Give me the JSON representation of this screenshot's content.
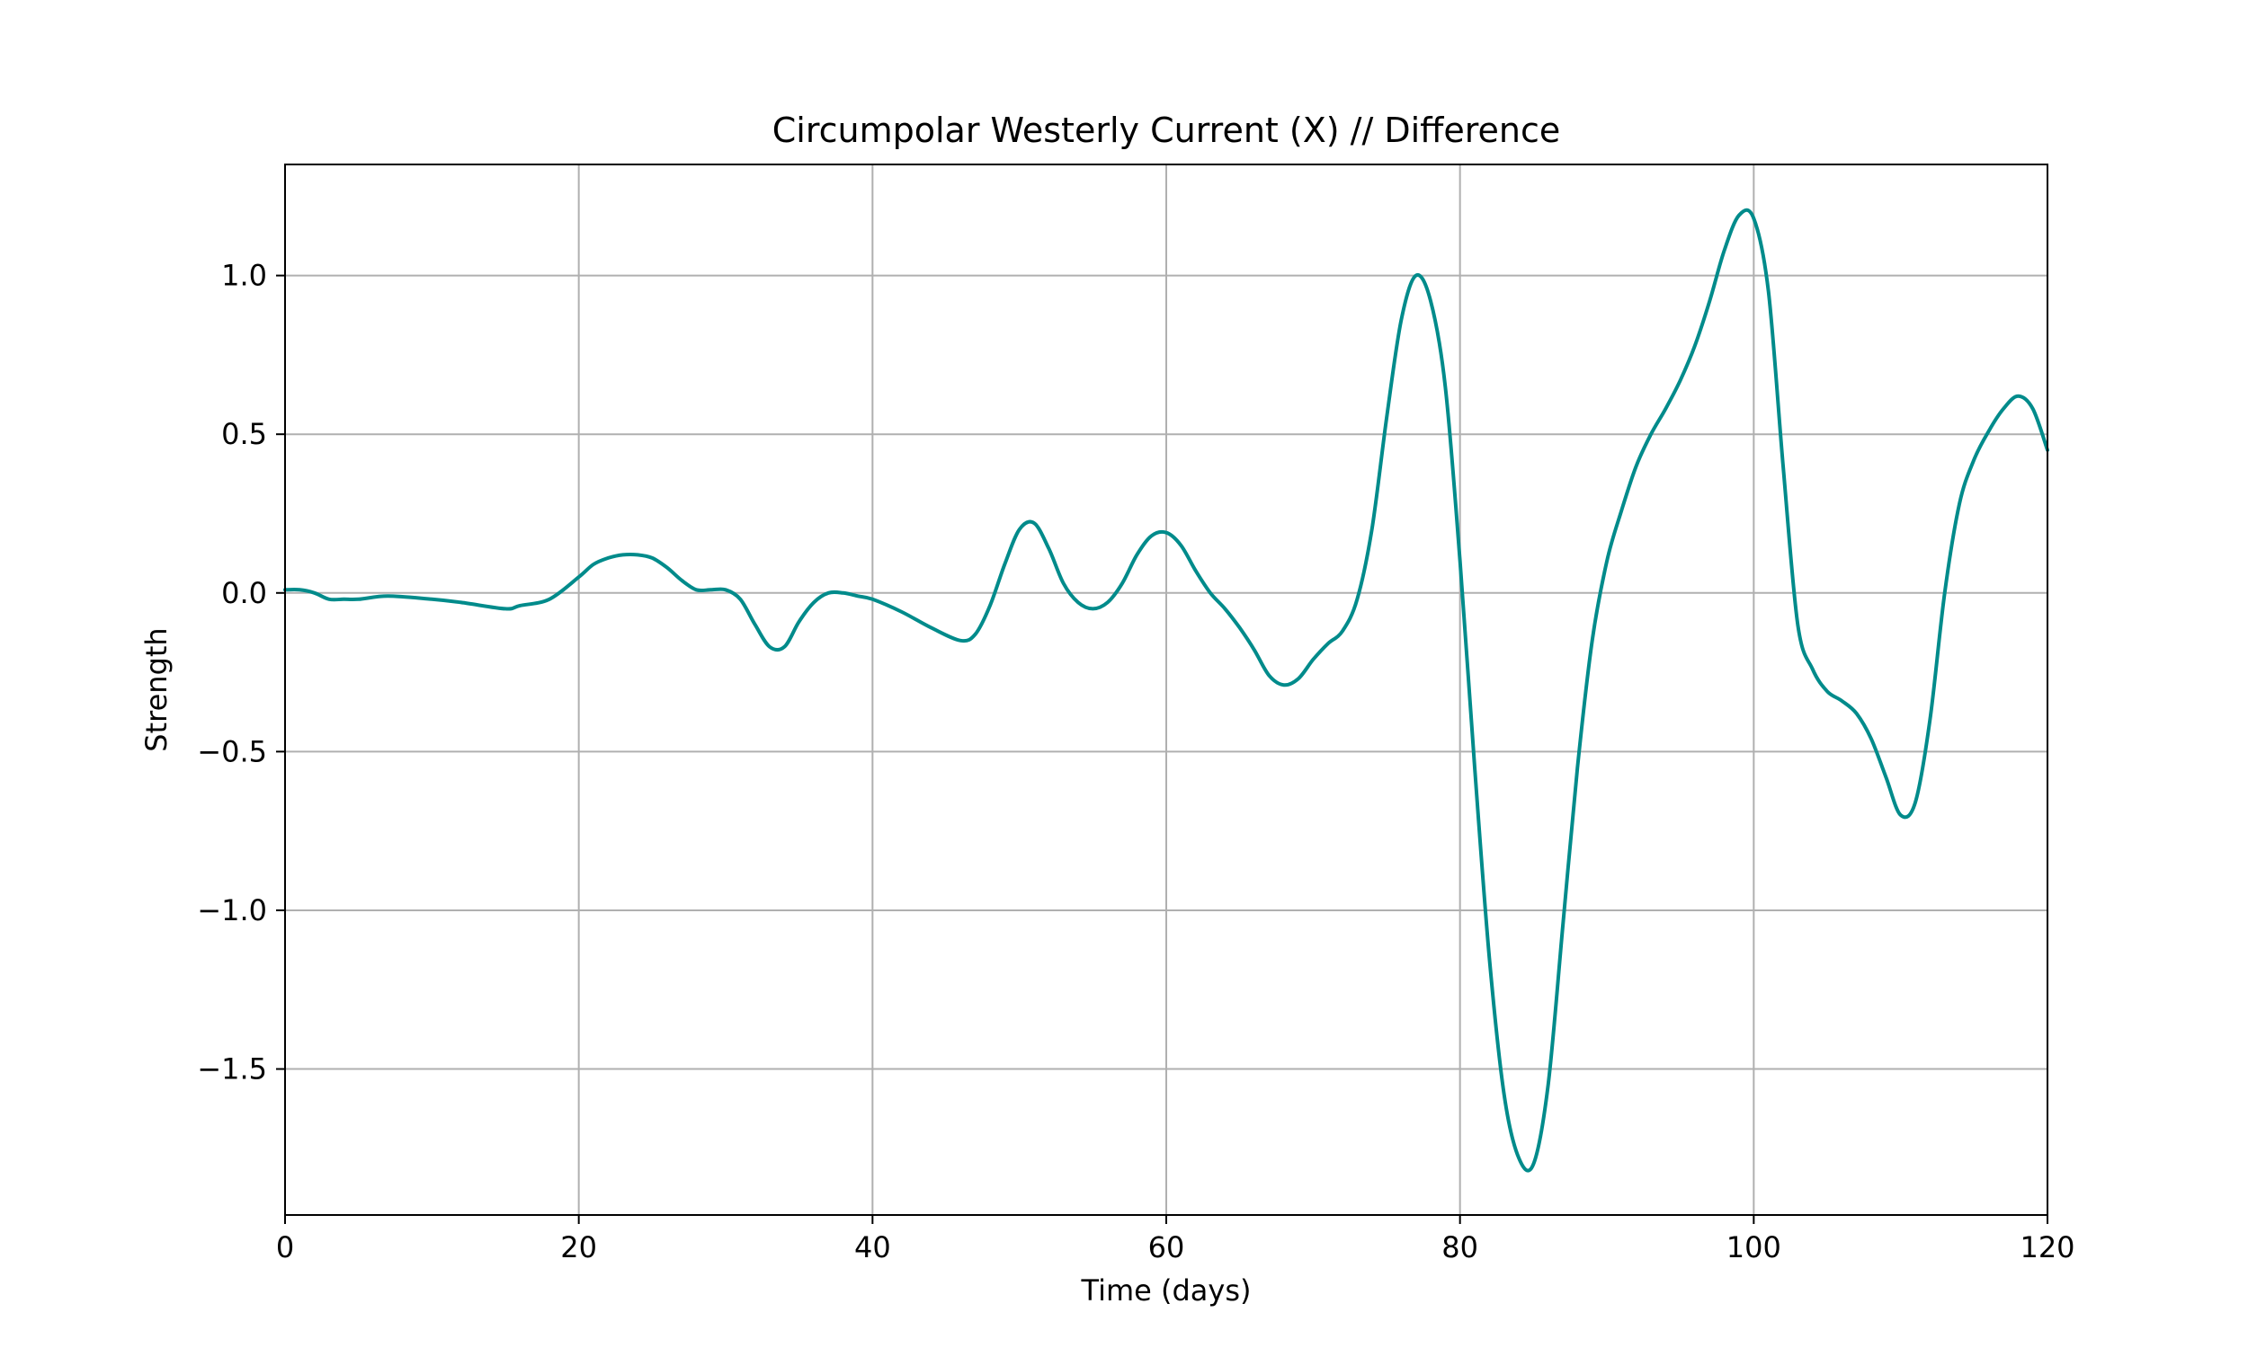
{
  "chart_data": {
    "type": "line",
    "title": "Circumpolar Westerly Current (X) // Difference",
    "xlabel": "Time (days)",
    "ylabel": "Strength",
    "xlim": [
      0,
      120
    ],
    "ylim": [
      -1.96,
      1.35
    ],
    "xticks": [
      0,
      20,
      40,
      60,
      80,
      100,
      120
    ],
    "xtick_labels": [
      "0",
      "20",
      "40",
      "60",
      "80",
      "100",
      "120"
    ],
    "yticks": [
      -1.5,
      -1.0,
      -0.5,
      0.0,
      0.5,
      1.0
    ],
    "ytick_labels": [
      "−1.5",
      "−1.0",
      "−0.5",
      "0.0",
      "0.5",
      "1.0"
    ],
    "grid": true,
    "series": [
      {
        "color": "#008b8b",
        "x": [
          0,
          1,
          2,
          3,
          4,
          5,
          7,
          10,
          12,
          15,
          16,
          18,
          20,
          21,
          22,
          23,
          24,
          25,
          26,
          27,
          28,
          29,
          30,
          31,
          32,
          33,
          34,
          35,
          36,
          37,
          38,
          39,
          40,
          42,
          44,
          46,
          47,
          48,
          49,
          50,
          51,
          52,
          53,
          54,
          55,
          56,
          57,
          58,
          59,
          60,
          61,
          62,
          63,
          64,
          65,
          66,
          67,
          68,
          69,
          70,
          71,
          72,
          73,
          74,
          75,
          76,
          77,
          78,
          79,
          80,
          81,
          82,
          83,
          84,
          85,
          86,
          87,
          88,
          89,
          90,
          91,
          92,
          93,
          94,
          95,
          96,
          97,
          98,
          99,
          100,
          101,
          102,
          103,
          104,
          105,
          106,
          107,
          108,
          109,
          110,
          111,
          112,
          113,
          114,
          115,
          116,
          117,
          118,
          119,
          120
        ],
        "y": [
          0.01,
          0.01,
          0.0,
          -0.02,
          -0.02,
          -0.02,
          -0.01,
          -0.02,
          -0.03,
          -0.05,
          -0.04,
          -0.02,
          0.05,
          0.09,
          0.11,
          0.12,
          0.12,
          0.11,
          0.08,
          0.04,
          0.01,
          0.01,
          0.01,
          -0.02,
          -0.1,
          -0.17,
          -0.17,
          -0.09,
          -0.03,
          0.0,
          0.0,
          -0.01,
          -0.02,
          -0.06,
          -0.11,
          -0.15,
          -0.13,
          -0.04,
          0.09,
          0.2,
          0.22,
          0.14,
          0.03,
          -0.03,
          -0.05,
          -0.03,
          0.03,
          0.12,
          0.18,
          0.19,
          0.15,
          0.07,
          0.0,
          -0.05,
          -0.11,
          -0.18,
          -0.26,
          -0.29,
          -0.27,
          -0.21,
          -0.16,
          -0.12,
          -0.02,
          0.2,
          0.55,
          0.86,
          1.0,
          0.92,
          0.65,
          0.1,
          -0.55,
          -1.15,
          -1.58,
          -1.78,
          -1.8,
          -1.55,
          -1.05,
          -0.55,
          -0.15,
          0.1,
          0.26,
          0.4,
          0.5,
          0.58,
          0.67,
          0.78,
          0.92,
          1.08,
          1.19,
          1.18,
          0.95,
          0.4,
          -0.1,
          -0.24,
          -0.31,
          -0.34,
          -0.38,
          -0.46,
          -0.58,
          -0.7,
          -0.66,
          -0.4,
          0.0,
          0.28,
          0.42,
          0.51,
          0.58,
          0.62,
          0.58,
          0.45
        ]
      }
    ]
  }
}
